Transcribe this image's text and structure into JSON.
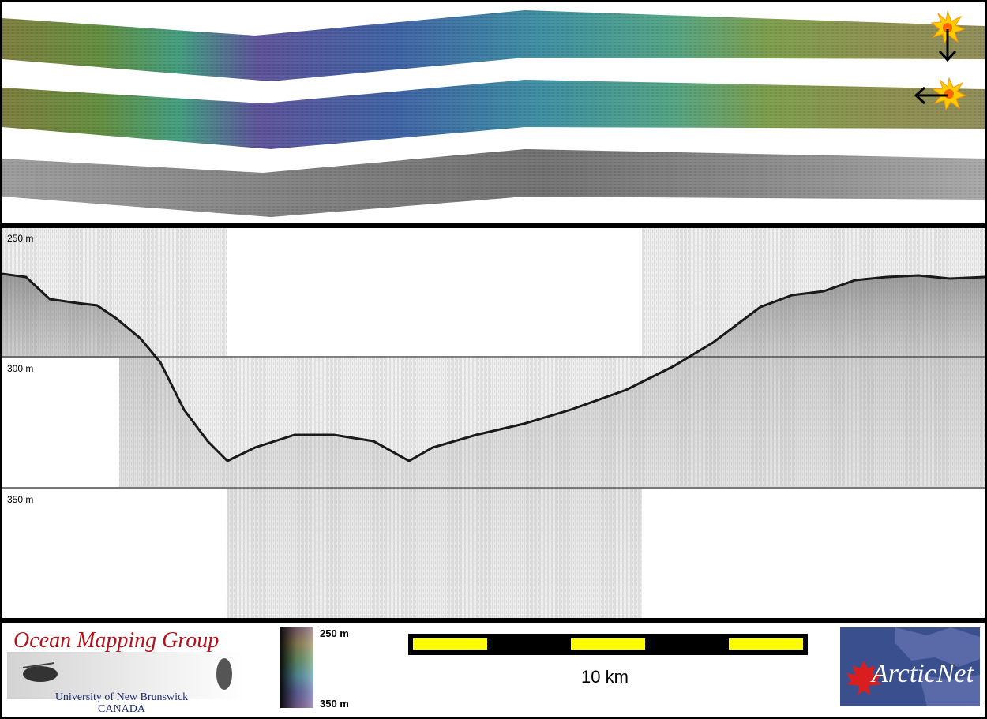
{
  "profile": {
    "depth_labels": [
      "250 m",
      "300 m",
      "350 m"
    ]
  },
  "footer": {
    "logo_left": {
      "title": "Ocean Mapping Group",
      "subtitle_line1": "University of New Brunswick",
      "subtitle_line2": "CANADA"
    },
    "colorbar": {
      "top_label": "250 m",
      "bottom_label": "350 m"
    },
    "scale_bar": {
      "label": "10 km",
      "segment_color": "#ffff00"
    },
    "logo_right": {
      "text": "ArcticNet"
    }
  },
  "icons": [
    "sun-icon",
    "arrow-down-icon",
    "arrow-left-icon",
    "maple-leaf-icon"
  ]
}
